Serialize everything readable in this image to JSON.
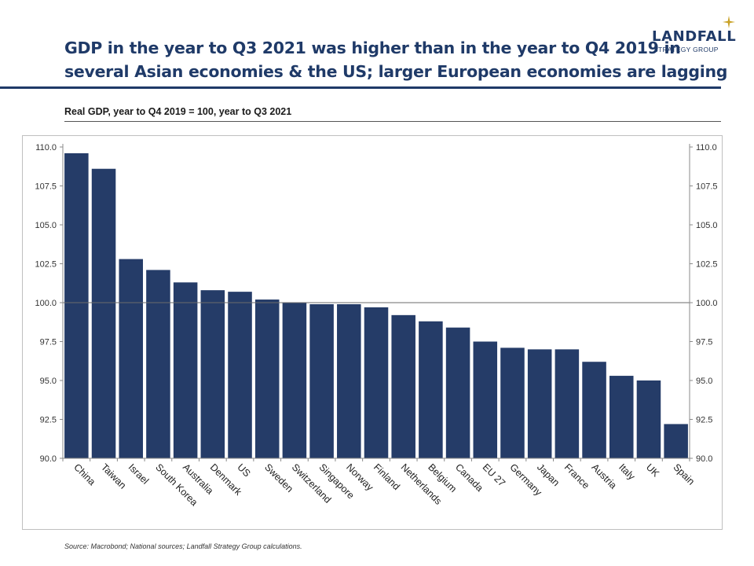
{
  "header": {
    "title_line1": "GDP in the year to Q3 2021 was higher than in the year to Q4 2019 in",
    "title_line2": "several Asian economies & the US; larger European economies are lagging",
    "logo_name": "LANDFALL",
    "logo_sub": "STRATEGY GROUP",
    "logo_icon": "star-icon"
  },
  "subtitle": "Real GDP, year to Q4 2019 = 100, year to Q3 2021",
  "source": "Source: Macrobond;  National sources; Landfall Strategy Group calculations.",
  "colors": {
    "bar": "#253c68",
    "brand": "#1f3a68",
    "accent_star": "#c9a227",
    "axis": "#8a8a8a"
  },
  "chart_data": {
    "type": "bar",
    "categories": [
      "China",
      "Taiwan",
      "Israel",
      "South Korea",
      "Australia",
      "Denmark",
      "US",
      "Sweden",
      "Switzerland",
      "Singapore",
      "Norway",
      "Finland",
      "Netherlands",
      "Belgium",
      "Canada",
      "EU 27",
      "Germany",
      "Japan",
      "France",
      "Austria",
      "Italy",
      "UK",
      "Spain"
    ],
    "values": [
      109.6,
      108.6,
      102.8,
      102.1,
      101.3,
      100.8,
      100.7,
      100.2,
      100.0,
      99.9,
      99.9,
      99.7,
      99.2,
      98.8,
      98.4,
      97.5,
      97.1,
      97.0,
      97.0,
      96.2,
      95.3,
      95.0,
      92.2
    ],
    "ylim": [
      90,
      110
    ],
    "yticks": [
      "90.0",
      "92.5",
      "95.0",
      "97.5",
      "100.0",
      "102.5",
      "105.0",
      "107.5",
      "110.0"
    ],
    "reference_line": 100,
    "y_axis_both_sides": true,
    "grid": false,
    "title": "",
    "xlabel": "",
    "ylabel": ""
  }
}
